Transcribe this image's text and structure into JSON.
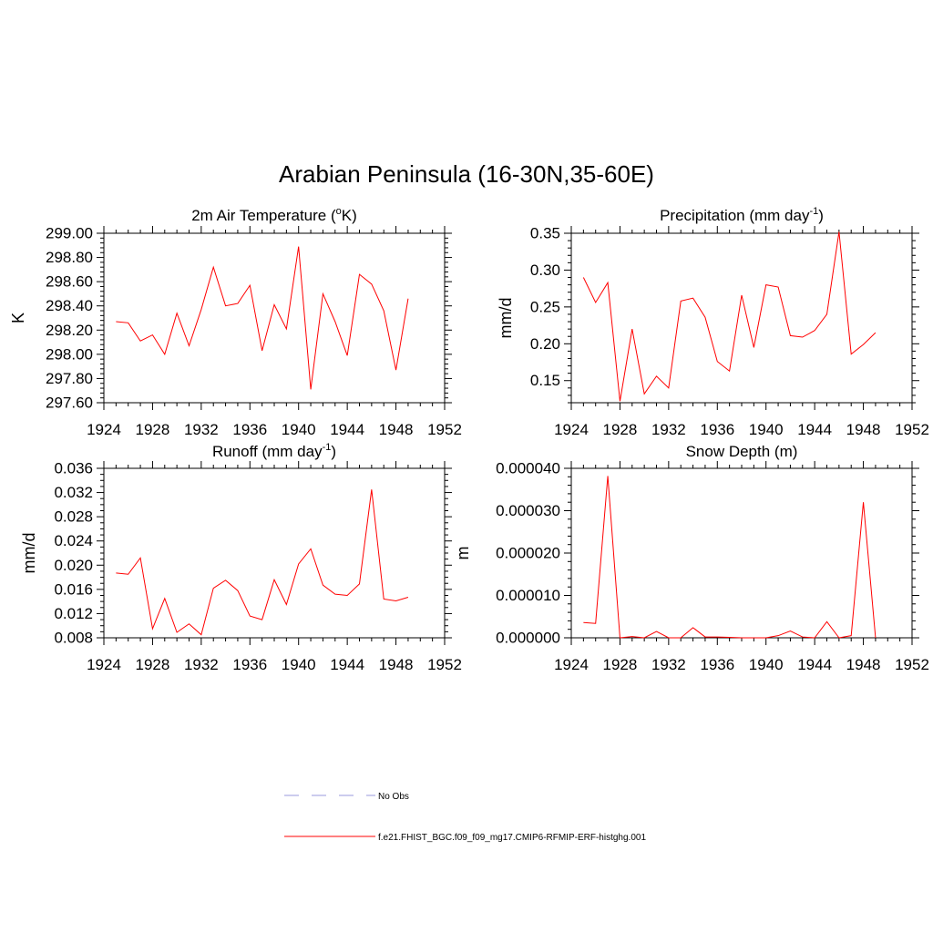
{
  "figure": {
    "title": "Arabian Peninsula (16-30N,35-60E)"
  },
  "legend": {
    "entries": [
      {
        "label": "No Obs",
        "style": "dashed",
        "color": "#9999dd"
      },
      {
        "label": "f.e21.FHIST_BGC.f09_f09_mg17.CMIP6-RFMIP-ERF-histghg.001",
        "style": "solid",
        "color": "#ff0000"
      }
    ]
  },
  "chart_data": [
    {
      "type": "line",
      "title_main": "2m Air Temperature (",
      "title_sup": "o",
      "title_end": "K)",
      "xlabel": "",
      "ylabel": "K",
      "xlim": [
        1924,
        1952
      ],
      "ylim": [
        297.6,
        299.0
      ],
      "xticks": [
        1924,
        1928,
        1932,
        1936,
        1940,
        1944,
        1948,
        1952
      ],
      "yticks": [
        297.6,
        297.8,
        298.0,
        298.2,
        298.4,
        298.6,
        298.8,
        299.0
      ],
      "ytick_labels": [
        "297.60",
        "297.80",
        "298.00",
        "298.20",
        "298.40",
        "298.60",
        "298.80",
        "299.00"
      ],
      "y_minor": 4,
      "x": [
        1925,
        1926,
        1927,
        1928,
        1929,
        1930,
        1931,
        1932,
        1933,
        1934,
        1935,
        1936,
        1937,
        1938,
        1939,
        1940,
        1941,
        1942,
        1943,
        1944,
        1945,
        1946,
        1947,
        1948,
        1949
      ],
      "series": [
        {
          "color": "#ff0000",
          "values": [
            298.27,
            298.26,
            298.11,
            298.16,
            298.0,
            298.34,
            298.07,
            298.37,
            298.72,
            298.4,
            298.42,
            298.57,
            298.03,
            298.41,
            298.21,
            298.89,
            297.71,
            298.5,
            298.27,
            297.99,
            298.66,
            298.58,
            298.36,
            297.87,
            298.46
          ]
        }
      ]
    },
    {
      "type": "line",
      "title_main": "Precipitation (mm day",
      "title_sup": "-1",
      "title_end": ")",
      "xlabel": "",
      "ylabel": "mm/d",
      "xlim": [
        1924,
        1952
      ],
      "ylim": [
        0.12,
        0.35
      ],
      "xticks": [
        1924,
        1928,
        1932,
        1936,
        1940,
        1944,
        1948,
        1952
      ],
      "yticks": [
        0.15,
        0.2,
        0.25,
        0.3,
        0.35
      ],
      "ytick_labels": [
        "0.15",
        "0.20",
        "0.25",
        "0.30",
        "0.35"
      ],
      "y_minor": 4,
      "x": [
        1925,
        1926,
        1927,
        1928,
        1929,
        1930,
        1931,
        1932,
        1933,
        1934,
        1935,
        1936,
        1937,
        1938,
        1939,
        1940,
        1941,
        1942,
        1943,
        1944,
        1945,
        1946,
        1947,
        1948,
        1949
      ],
      "series": [
        {
          "color": "#ff0000",
          "values": [
            0.29,
            0.256,
            0.283,
            0.122,
            0.22,
            0.132,
            0.156,
            0.14,
            0.258,
            0.262,
            0.236,
            0.176,
            0.163,
            0.266,
            0.195,
            0.28,
            0.277,
            0.211,
            0.209,
            0.218,
            0.24,
            0.352,
            0.186,
            0.199,
            0.215
          ]
        }
      ]
    },
    {
      "type": "line",
      "title_main": "Runoff (mm day",
      "title_sup": "-1",
      "title_end": ")",
      "xlabel": "",
      "ylabel": "mm/d",
      "xlim": [
        1924,
        1952
      ],
      "ylim": [
        0.008,
        0.036
      ],
      "xticks": [
        1924,
        1928,
        1932,
        1936,
        1940,
        1944,
        1948,
        1952
      ],
      "yticks": [
        0.008,
        0.012,
        0.016,
        0.02,
        0.024,
        0.028,
        0.032,
        0.036
      ],
      "ytick_labels": [
        "0.008",
        "0.012",
        "0.016",
        "0.020",
        "0.024",
        "0.028",
        "0.032",
        "0.036"
      ],
      "y_minor": 3,
      "x": [
        1925,
        1926,
        1927,
        1928,
        1929,
        1930,
        1931,
        1932,
        1933,
        1934,
        1935,
        1936,
        1937,
        1938,
        1939,
        1940,
        1941,
        1942,
        1943,
        1944,
        1945,
        1946,
        1947,
        1948,
        1949
      ],
      "series": [
        {
          "color": "#ff0000",
          "values": [
            0.0187,
            0.0185,
            0.0212,
            0.0095,
            0.0145,
            0.0089,
            0.0103,
            0.0085,
            0.0162,
            0.0175,
            0.0158,
            0.0116,
            0.011,
            0.0176,
            0.0135,
            0.0202,
            0.0227,
            0.0167,
            0.0152,
            0.015,
            0.0169,
            0.0325,
            0.0144,
            0.0141,
            0.0147
          ]
        }
      ]
    },
    {
      "type": "line",
      "title_main": "Snow Depth (m)",
      "title_sup": "",
      "title_end": "",
      "xlabel": "",
      "ylabel": "m",
      "xlim": [
        1924,
        1952
      ],
      "ylim": [
        0.0,
        4e-05
      ],
      "xticks": [
        1924,
        1928,
        1932,
        1936,
        1940,
        1944,
        1948,
        1952
      ],
      "yticks": [
        0.0,
        1e-05,
        2e-05,
        3e-05,
        4e-05
      ],
      "ytick_labels": [
        "0.000000",
        "0.000010",
        "0.000020",
        "0.000030",
        "0.000040"
      ],
      "y_minor": 4,
      "x": [
        1925,
        1926,
        1927,
        1928,
        1929,
        1930,
        1931,
        1932,
        1933,
        1934,
        1935,
        1936,
        1937,
        1938,
        1939,
        1940,
        1941,
        1942,
        1943,
        1944,
        1945,
        1946,
        1947,
        1948,
        1949
      ],
      "series": [
        {
          "color": "#ff0000",
          "values": [
            3.6e-06,
            3.4e-06,
            3.82e-05,
            0.0,
            3e-07,
            0.0,
            1.5e-06,
            0.0,
            0.0,
            2.4e-06,
            2e-07,
            2e-07,
            1e-07,
            0.0,
            0.0,
            0.0,
            5e-07,
            1.6e-06,
            2e-07,
            0.0,
            3.8e-06,
            0.0,
            5e-07,
            3.2e-05,
            0.0
          ]
        }
      ]
    }
  ]
}
